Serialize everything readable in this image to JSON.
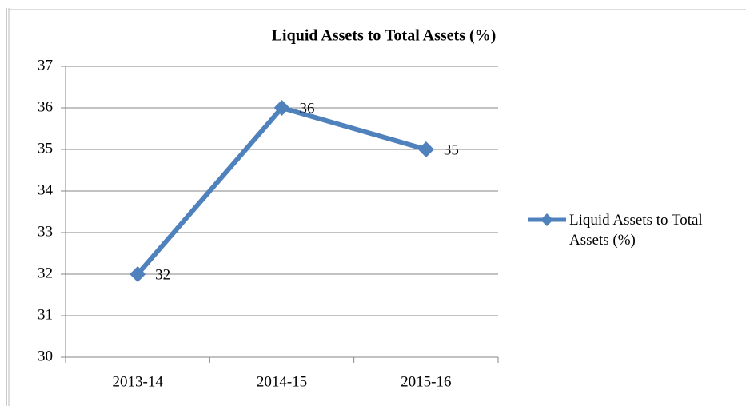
{
  "chart_data": {
    "type": "line",
    "title": "Liquid Assets to Total Assets (%)",
    "categories": [
      "2013-14",
      "2014-15",
      "2015-16"
    ],
    "series": [
      {
        "name": "Liquid Assets to Total Assets (%)",
        "color": "#4f81bd",
        "values": [
          32,
          36,
          35
        ]
      }
    ],
    "ylim": [
      30,
      37
    ],
    "yticks": [
      30,
      31,
      32,
      33,
      34,
      35,
      36,
      37
    ],
    "grid": true,
    "legend": "right",
    "data_labels": true
  }
}
